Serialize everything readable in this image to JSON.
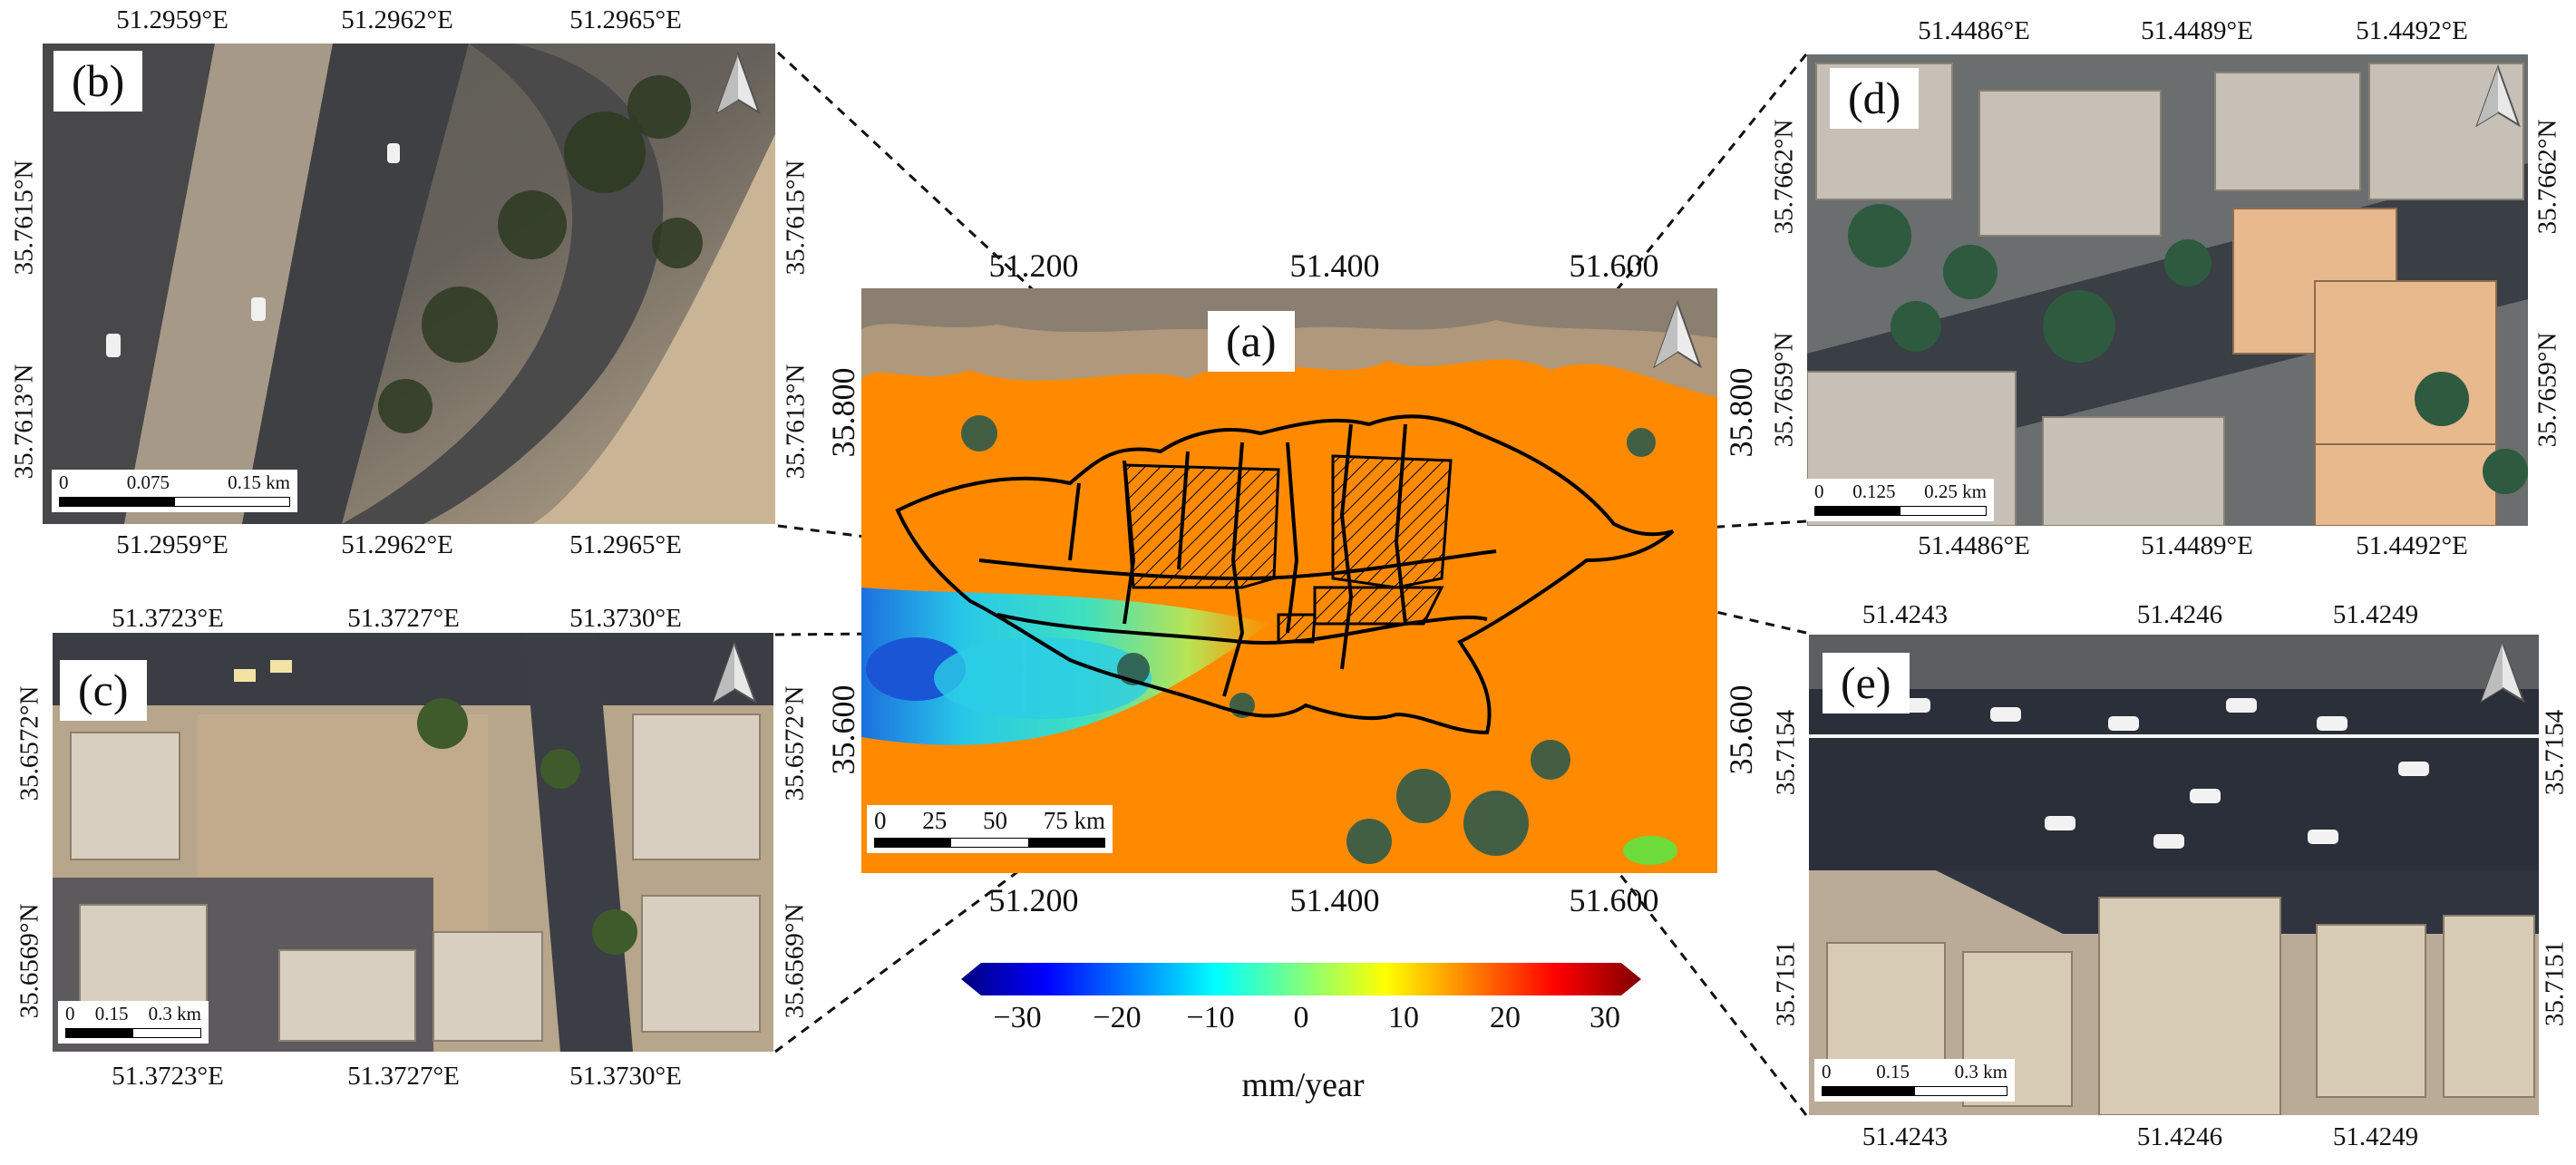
{
  "panel_a": {
    "label": "(a)",
    "top_ticks": [
      "51.200",
      "51.400",
      "51.600"
    ],
    "bottom_ticks": [
      "51.200",
      "51.400",
      "51.600"
    ],
    "left_ticks": [
      "35.800",
      "35.600"
    ],
    "right_ticks": [
      "35.800",
      "35.600"
    ],
    "scale_labels": [
      "0",
      "25",
      "50",
      "75 km"
    ],
    "north_arrow": "north-arrow-icon"
  },
  "colorbar": {
    "ticks": [
      "−30",
      "−20",
      "−10",
      "0",
      "10",
      "20",
      "30"
    ],
    "unit": "mm/year",
    "colors": [
      "#00007f",
      "#0000ff",
      "#007fff",
      "#00ffff",
      "#7fff7f",
      "#ffff00",
      "#ff7f00",
      "#ff0000",
      "#7f0000"
    ]
  },
  "panel_b": {
    "label": "(b)",
    "top_ticks": [
      "51.2959°E",
      "51.2962°E",
      "51.2965°E"
    ],
    "bottom_ticks": [
      "51.2959°E",
      "51.2962°E",
      "51.2965°E"
    ],
    "left_ticks": [
      "35.7615°N",
      "35.7613°N"
    ],
    "right_ticks": [
      "35.7615°N",
      "35.7613°N"
    ],
    "scale_labels": [
      "0",
      "0.075",
      "0.15 km"
    ]
  },
  "panel_c": {
    "label": "(c)",
    "top_ticks": [
      "51.3723°E",
      "51.3727°E",
      "51.3730°E"
    ],
    "bottom_ticks": [
      "51.3723°E",
      "51.3727°E",
      "51.3730°E"
    ],
    "left_ticks": [
      "35.6572°N",
      "35.6569°N"
    ],
    "right_ticks": [
      "35.6572°N",
      "35.6569°N"
    ],
    "scale_labels": [
      "0",
      "0.15",
      "0.3 km"
    ]
  },
  "panel_d": {
    "label": "(d)",
    "top_ticks": [
      "51.4486°E",
      "51.4489°E",
      "51.4492°E"
    ],
    "bottom_ticks": [
      "51.4486°E",
      "51.4489°E",
      "51.4492°E"
    ],
    "left_ticks": [
      "35.7662°N",
      "35.7659°N"
    ],
    "right_ticks": [
      "35.7662°N",
      "35.7659°N"
    ],
    "scale_labels": [
      "0",
      "0.125",
      "0.25 km"
    ]
  },
  "panel_e": {
    "label": "(e)",
    "top_ticks": [
      "51.4243",
      "51.4246",
      "51.4249"
    ],
    "bottom_ticks": [
      "51.4243",
      "51.4246",
      "51.4249"
    ],
    "left_ticks": [
      "35.7154",
      "35.7151"
    ],
    "right_ticks": [
      "35.7154",
      "35.7151"
    ],
    "scale_labels": [
      "0",
      "0.15",
      "0.3 km"
    ]
  }
}
